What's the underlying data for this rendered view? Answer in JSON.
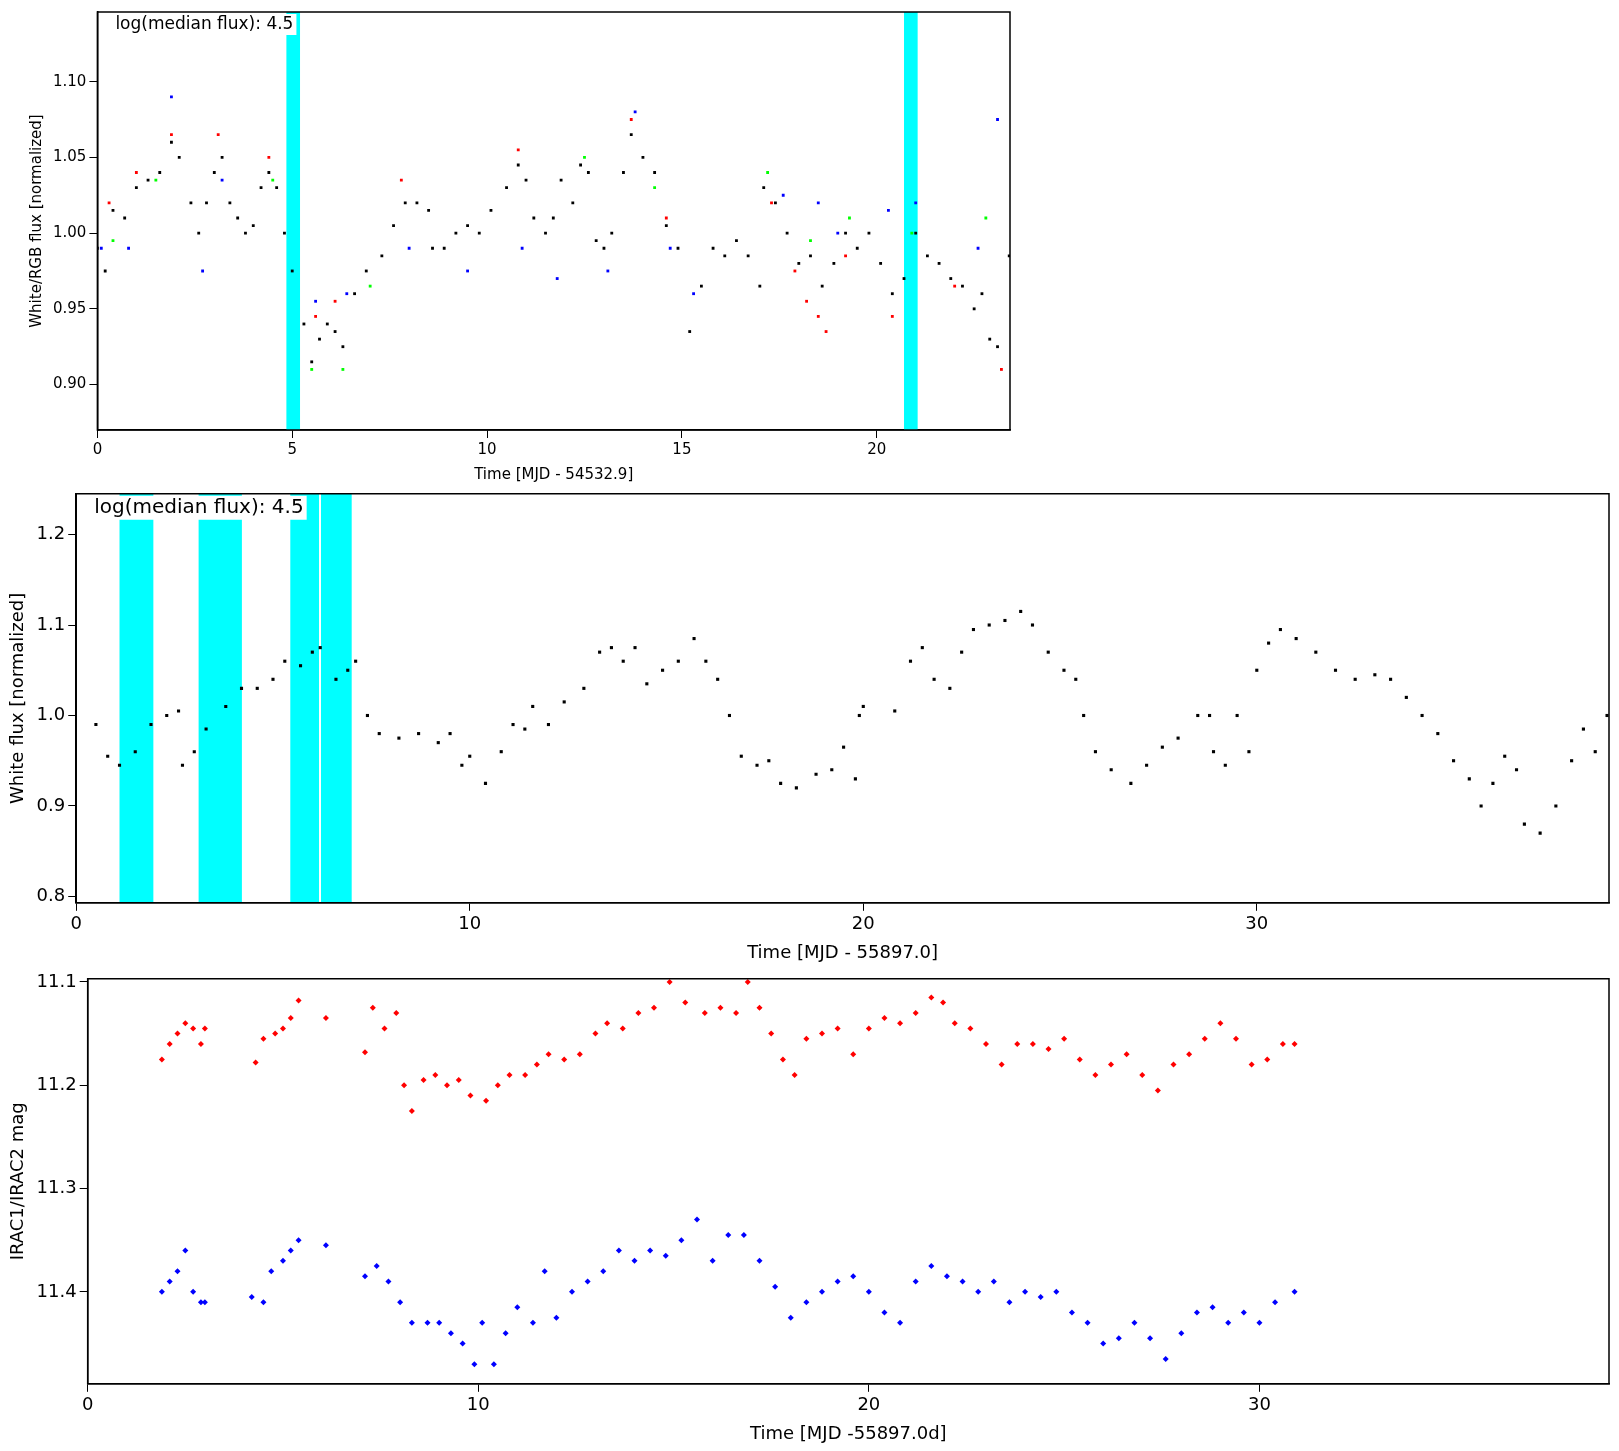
{
  "chart_data": [
    {
      "type": "scatter",
      "xlabel": "Time [MJD - 54532.9]",
      "ylabel": "White/RGB flux [normalized]",
      "annotations": [
        "log(median flux): 4.5"
      ],
      "xlim": [
        0,
        23.42
      ],
      "ylim": [
        0.87,
        1.146
      ],
      "xticks": [
        0,
        5,
        10,
        15,
        20
      ],
      "yticks": [
        {
          "value": 0.9,
          "label": "0.90"
        },
        {
          "value": 0.95,
          "label": "0.95"
        },
        {
          "value": 1.0,
          "label": "1.00"
        },
        {
          "value": 1.05,
          "label": "1.05"
        },
        {
          "value": 1.1,
          "label": "1.10"
        }
      ],
      "grid": false,
      "legend": false,
      "marker": "square",
      "bands": [
        {
          "axis": "x",
          "from": 4.85,
          "to": 5.2,
          "color": "#00ffff"
        },
        {
          "axis": "x",
          "from": 20.7,
          "to": 21.05,
          "color": "#00ffff"
        }
      ],
      "series": [
        {
          "color": "#ff0000",
          "x": [
            0.3,
            1.0,
            1.9,
            3.1,
            4.4,
            5.6,
            6.1,
            7.8,
            10.8,
            13.7,
            14.6,
            17.3,
            17.9,
            18.2,
            18.5,
            18.7,
            19.2,
            20.4,
            22.0,
            23.2
          ],
          "values": [
            1.02,
            1.04,
            1.065,
            1.065,
            1.05,
            0.945,
            0.955,
            1.035,
            1.055,
            1.075,
            1.01,
            1.02,
            0.975,
            0.955,
            0.945,
            0.935,
            0.985,
            0.945,
            0.965,
            0.91
          ]
        },
        {
          "color": "#00ff00",
          "x": [
            0.4,
            1.5,
            4.5,
            5.5,
            6.3,
            7.0,
            12.5,
            14.3,
            17.2,
            18.3,
            19.3,
            20.9,
            22.8
          ],
          "values": [
            0.995,
            1.035,
            1.035,
            0.91,
            0.91,
            0.965,
            1.05,
            1.03,
            1.04,
            0.995,
            1.01,
            1.0,
            1.01
          ]
        },
        {
          "color": "#0000ff",
          "x": [
            0.1,
            0.8,
            1.9,
            2.7,
            3.2,
            5.6,
            6.4,
            8.0,
            9.5,
            10.9,
            11.8,
            13.1,
            13.8,
            14.7,
            15.3,
            17.6,
            18.5,
            19.0,
            20.3,
            21.0,
            22.6,
            23.1
          ],
          "values": [
            0.99,
            0.99,
            1.09,
            0.975,
            1.035,
            0.955,
            0.96,
            0.99,
            0.975,
            0.99,
            0.97,
            0.975,
            1.08,
            0.99,
            0.96,
            1.025,
            1.02,
            1.0,
            1.015,
            1.02,
            0.99,
            1.075
          ]
        },
        {
          "color": "#000000",
          "x": [
            0,
            0.2,
            0.4,
            0.7,
            1.0,
            1.3,
            1.6,
            1.9,
            2.1,
            2.4,
            2.6,
            2.8,
            3.0,
            3.2,
            3.4,
            3.6,
            3.8,
            4.0,
            4.2,
            4.4,
            4.6,
            4.8,
            5.0,
            5.3,
            5.5,
            5.7,
            5.9,
            6.1,
            6.3,
            6.6,
            6.9,
            7.3,
            7.6,
            7.9,
            8.2,
            8.5,
            8.6,
            8.9,
            9.2,
            9.5,
            9.8,
            10.1,
            10.5,
            10.8,
            11.0,
            11.2,
            11.5,
            11.7,
            11.9,
            12.2,
            12.4,
            12.6,
            12.8,
            13.0,
            13.2,
            13.5,
            13.7,
            14.0,
            14.3,
            14.6,
            14.9,
            15.2,
            15.5,
            15.8,
            16.1,
            16.4,
            16.7,
            17.0,
            17.1,
            17.4,
            17.7,
            18.0,
            18.3,
            18.6,
            18.9,
            19.2,
            19.5,
            19.8,
            20.1,
            20.4,
            20.7,
            21.0,
            21.3,
            21.6,
            21.9,
            22.2,
            22.5,
            22.7,
            22.9,
            23.1,
            23.4
          ],
          "values": [
            0.99,
            0.975,
            1.015,
            1.01,
            1.03,
            1.035,
            1.04,
            1.06,
            1.05,
            1.02,
            1.0,
            1.02,
            1.04,
            1.05,
            1.02,
            1.01,
            1.0,
            1.005,
            1.03,
            1.04,
            1.03,
            1.0,
            0.975,
            0.94,
            0.915,
            0.93,
            0.94,
            0.935,
            0.925,
            0.96,
            0.975,
            0.985,
            1.005,
            1.02,
            1.02,
            1.015,
            0.99,
            0.99,
            1.0,
            1.005,
            1.0,
            1.015,
            1.03,
            1.045,
            1.035,
            1.01,
            1.0,
            1.01,
            1.035,
            1.02,
            1.045,
            1.04,
            0.995,
            0.99,
            1.0,
            1.04,
            1.065,
            1.05,
            1.04,
            1.005,
            0.99,
            0.935,
            0.965,
            0.99,
            0.985,
            0.995,
            0.985,
            0.965,
            1.03,
            1.02,
            1.0,
            0.98,
            0.985,
            0.965,
            0.98,
            1.0,
            0.99,
            1.0,
            0.98,
            0.96,
            0.97,
            1.0,
            0.985,
            0.98,
            0.97,
            0.965,
            0.95,
            0.96,
            0.93,
            0.925,
            0.985
          ]
        }
      ]
    },
    {
      "type": "scatter",
      "xlabel": "Time [MJD - 55897.0]",
      "ylabel": "White flux [normalized]",
      "annotations": [
        "log(median flux): 4.5"
      ],
      "xlim": [
        0,
        38.95
      ],
      "ylim": [
        0.793,
        1.245
      ],
      "xticks": [
        0,
        10,
        20,
        30
      ],
      "yticks": [
        0.8,
        0.9,
        {
          "value": 1.0,
          "label": "1.0"
        },
        1.1,
        1.2
      ],
      "grid": false,
      "legend": false,
      "marker": "square",
      "bands": [
        {
          "axis": "x",
          "from": 1.1,
          "to": 1.96,
          "color": "#00ffff"
        },
        {
          "axis": "x",
          "from": 3.11,
          "to": 4.21,
          "color": "#00ffff"
        },
        {
          "axis": "x",
          "from": 5.44,
          "to": 6.17,
          "color": "#00ffff"
        },
        {
          "axis": "x",
          "from": 6.22,
          "to": 7.0,
          "color": "#00ffff"
        }
      ],
      "series": [
        {
          "color": "#000000",
          "x": [
            0.5,
            0.8,
            1.1,
            1.5,
            1.9,
            2.3,
            2.6,
            2.7,
            3.0,
            3.3,
            3.8,
            4.2,
            4.6,
            5.0,
            5.3,
            5.7,
            6.0,
            6.2,
            6.6,
            6.9,
            7.1,
            7.4,
            7.7,
            8.2,
            8.7,
            9.2,
            9.5,
            9.8,
            10.0,
            10.4,
            10.8,
            11.1,
            11.4,
            11.6,
            12.0,
            12.4,
            12.9,
            13.3,
            13.6,
            13.9,
            14.2,
            14.5,
            14.9,
            15.3,
            15.7,
            16.0,
            16.3,
            16.6,
            16.9,
            17.3,
            17.6,
            17.9,
            18.3,
            18.8,
            19.2,
            19.5,
            19.8,
            19.9,
            20.0,
            20.8,
            21.2,
            21.5,
            21.8,
            22.2,
            22.5,
            22.8,
            23.2,
            23.6,
            24.0,
            24.3,
            24.7,
            25.1,
            25.4,
            25.6,
            25.9,
            26.3,
            26.8,
            27.2,
            27.6,
            28.0,
            28.5,
            28.8,
            28.9,
            29.2,
            29.5,
            29.8,
            30.0,
            30.3,
            30.6,
            31.0,
            31.5,
            32.0,
            32.5,
            33.0,
            33.4,
            33.8,
            34.2,
            34.6,
            35.0,
            35.4,
            35.7,
            36.0,
            36.3,
            36.6,
            36.8,
            37.2,
            37.6,
            38.0,
            38.3,
            38.6,
            38.9
          ],
          "values": [
            0.99,
            0.955,
            0.945,
            0.96,
            0.99,
            1.0,
            1.005,
            0.945,
            0.96,
            0.985,
            1.01,
            1.03,
            1.03,
            1.04,
            1.06,
            1.055,
            1.07,
            1.075,
            1.04,
            1.05,
            1.06,
            1.0,
            0.98,
            0.975,
            0.98,
            0.97,
            0.98,
            0.945,
            0.955,
            0.925,
            0.96,
            0.99,
            0.985,
            1.01,
            0.99,
            1.015,
            1.03,
            1.07,
            1.075,
            1.06,
            1.075,
            1.035,
            1.05,
            1.06,
            1.085,
            1.06,
            1.04,
            1.0,
            0.955,
            0.945,
            0.95,
            0.925,
            0.92,
            0.935,
            0.94,
            0.965,
            0.93,
            1.0,
            1.01,
            1.005,
            1.06,
            1.075,
            1.04,
            1.03,
            1.07,
            1.095,
            1.1,
            1.105,
            1.115,
            1.1,
            1.07,
            1.05,
            1.04,
            1.0,
            0.96,
            0.94,
            0.925,
            0.945,
            0.965,
            0.975,
            1.0,
            1.0,
            0.96,
            0.945,
            1.0,
            0.96,
            1.05,
            1.08,
            1.095,
            1.085,
            1.07,
            1.05,
            1.04,
            1.045,
            1.04,
            1.02,
            1.0,
            0.98,
            0.95,
            0.93,
            0.9,
            0.925,
            0.955,
            0.94,
            0.88,
            0.87,
            0.9,
            0.95,
            0.985,
            0.96,
            1.0
          ]
        }
      ]
    },
    {
      "type": "scatter",
      "xlabel": "Time [MJD -55897.0d]",
      "ylabel": "IRAC1/IRAC2 mag",
      "xlim": [
        0,
        38.95
      ],
      "ylim": [
        11.489,
        11.097
      ],
      "xticks": [
        0,
        10,
        20,
        30
      ],
      "yticks": [
        11.1,
        11.2,
        11.3,
        11.4
      ],
      "grid": false,
      "legend": false,
      "marker": "diamond",
      "series": [
        {
          "color": "#ff0000",
          "x": [
            1.9,
            2.1,
            2.3,
            2.5,
            2.7,
            2.9,
            3.0,
            4.3,
            4.5,
            4.8,
            5.0,
            5.2,
            5.4,
            6.1,
            7.1,
            7.3,
            7.6,
            7.9,
            8.1,
            8.3,
            8.6,
            8.9,
            9.2,
            9.5,
            9.8,
            10.2,
            10.5,
            10.8,
            11.2,
            11.5,
            11.8,
            12.2,
            12.6,
            13.0,
            13.3,
            13.7,
            14.1,
            14.5,
            14.9,
            15.3,
            15.8,
            16.2,
            16.6,
            16.9,
            17.2,
            17.5,
            17.8,
            18.1,
            18.4,
            18.8,
            19.2,
            19.6,
            20.0,
            20.4,
            20.8,
            21.2,
            21.6,
            21.9,
            22.2,
            22.6,
            23.0,
            23.4,
            23.8,
            24.2,
            24.6,
            25.0,
            25.4,
            25.8,
            26.2,
            26.6,
            27.0,
            27.4,
            27.8,
            28.2,
            28.6,
            29.0,
            29.4,
            29.8,
            30.2,
            30.6,
            30.9
          ],
          "values": [
            11.175,
            11.16,
            11.15,
            11.14,
            11.145,
            11.16,
            11.145,
            11.178,
            11.155,
            11.15,
            11.145,
            11.135,
            11.118,
            11.135,
            11.168,
            11.125,
            11.145,
            11.13,
            11.2,
            11.225,
            11.195,
            11.19,
            11.2,
            11.195,
            11.21,
            11.215,
            11.2,
            11.19,
            11.19,
            11.18,
            11.17,
            11.175,
            11.17,
            11.15,
            11.14,
            11.145,
            11.13,
            11.125,
            11.1,
            11.12,
            11.13,
            11.125,
            11.13,
            11.1,
            11.125,
            11.15,
            11.175,
            11.19,
            11.155,
            11.15,
            11.145,
            11.17,
            11.145,
            11.135,
            11.14,
            11.13,
            11.115,
            11.12,
            11.14,
            11.145,
            11.16,
            11.18,
            11.16,
            11.16,
            11.165,
            11.155,
            11.175,
            11.19,
            11.18,
            11.17,
            11.19,
            11.205,
            11.18,
            11.17,
            11.155,
            11.14,
            11.155,
            11.18,
            11.175,
            11.16,
            11.16
          ]
        },
        {
          "color": "#0000ff",
          "x": [
            1.9,
            2.1,
            2.3,
            2.5,
            2.7,
            2.9,
            3.0,
            4.2,
            4.5,
            4.7,
            5.0,
            5.2,
            5.4,
            6.1,
            7.1,
            7.4,
            7.7,
            8.0,
            8.3,
            8.7,
            9.0,
            9.3,
            9.6,
            9.9,
            10.1,
            10.4,
            10.7,
            11.0,
            11.4,
            11.7,
            12.0,
            12.4,
            12.8,
            13.2,
            13.6,
            14.0,
            14.4,
            14.8,
            15.2,
            15.6,
            16.0,
            16.4,
            16.8,
            17.2,
            17.6,
            18.0,
            18.4,
            18.8,
            19.2,
            19.6,
            20.0,
            20.4,
            20.8,
            21.2,
            21.6,
            22.0,
            22.4,
            22.8,
            23.2,
            23.6,
            24.0,
            24.4,
            24.8,
            25.2,
            25.6,
            26.0,
            26.4,
            26.8,
            27.2,
            27.6,
            28.0,
            28.4,
            28.8,
            29.2,
            29.6,
            30.0,
            30.4,
            30.9
          ],
          "values": [
            11.4,
            11.39,
            11.38,
            11.36,
            11.4,
            11.41,
            11.41,
            11.405,
            11.41,
            11.38,
            11.37,
            11.36,
            11.35,
            11.355,
            11.385,
            11.375,
            11.39,
            11.41,
            11.43,
            11.43,
            11.43,
            11.44,
            11.45,
            11.47,
            11.43,
            11.47,
            11.44,
            11.415,
            11.43,
            11.38,
            11.425,
            11.4,
            11.39,
            11.38,
            11.36,
            11.37,
            11.36,
            11.365,
            11.35,
            11.33,
            11.37,
            11.345,
            11.345,
            11.37,
            11.395,
            11.425,
            11.41,
            11.4,
            11.39,
            11.385,
            11.4,
            11.42,
            11.43,
            11.39,
            11.375,
            11.385,
            11.39,
            11.4,
            11.39,
            11.41,
            11.4,
            11.405,
            11.4,
            11.42,
            11.43,
            11.45,
            11.445,
            11.43,
            11.445,
            11.465,
            11.44,
            11.42,
            11.415,
            11.43,
            11.42,
            11.43,
            11.41,
            11.4
          ]
        }
      ]
    }
  ]
}
